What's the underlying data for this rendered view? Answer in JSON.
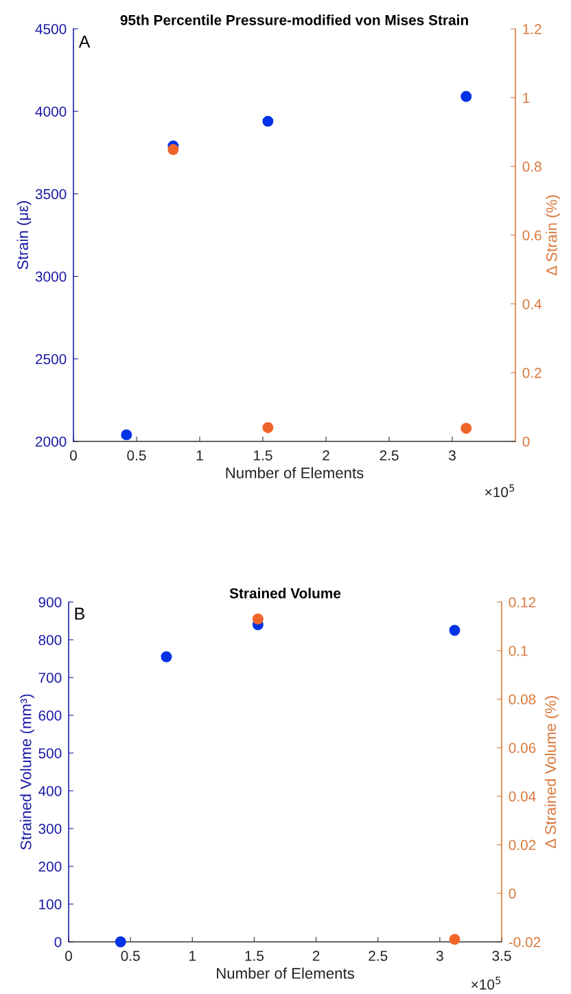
{
  "chart_data": [
    {
      "type": "scatter",
      "title": "95th Percentile Pressure-modified von Mises Strain",
      "xlabel": "Number of Elements",
      "ylabel": "Strain (με)",
      "y2label": "Δ Strain (%)",
      "annotations": [
        "A",
        "×10$^{5}$"
      ],
      "xlim": [
        0,
        3.5
      ],
      "xticks": [
        0,
        0.5,
        1,
        1.5,
        2,
        2.5,
        3
      ],
      "ylim": [
        2000,
        4500
      ],
      "yticks": [
        2000,
        2500,
        3000,
        3500,
        4000,
        4500
      ],
      "y2lim": [
        0,
        1.2
      ],
      "y2ticks": [
        0,
        0.2,
        0.4,
        0.6,
        0.8,
        1,
        1.2
      ],
      "marker": "circle",
      "series": [
        {
          "color": "#0033e6",
          "x": [
            0.42,
            0.79,
            1.54,
            3.11
          ],
          "values": [
            2040,
            3790,
            3940,
            4090
          ]
        },
        {
          "color": "#f0642a",
          "axis": "y2",
          "x": [
            0.79,
            1.54,
            3.11
          ],
          "values": [
            0.849,
            0.04,
            0.038
          ]
        }
      ]
    },
    {
      "type": "scatter",
      "title": "Strained Volume",
      "xlabel": "Number of Elements",
      "ylabel": "Strained Volume (mm³)",
      "y2label": "Δ Strained Volume (%)",
      "annotations": [
        "B",
        "×10$^{5}$"
      ],
      "xlim": [
        0,
        3.5
      ],
      "xticks": [
        0,
        0.5,
        1,
        1.5,
        2,
        2.5,
        3,
        3.5
      ],
      "ylim": [
        0,
        900
      ],
      "yticks": [
        0,
        100,
        200,
        300,
        400,
        500,
        600,
        700,
        800,
        900
      ],
      "y2lim": [
        -0.02,
        0.12
      ],
      "y2ticks": [
        -0.02,
        0,
        0.02,
        0.04,
        0.06,
        0.08,
        0.1,
        0.12
      ],
      "marker": "circle",
      "series": [
        {
          "color": "#0033e6",
          "x": [
            0.42,
            0.79,
            1.53,
            3.12
          ],
          "values": [
            0,
            755,
            840,
            825
          ]
        },
        {
          "color": "#f0642a",
          "axis": "y2",
          "x": [
            1.53,
            3.12
          ],
          "values": [
            0.113,
            -0.019
          ]
        }
      ]
    }
  ]
}
